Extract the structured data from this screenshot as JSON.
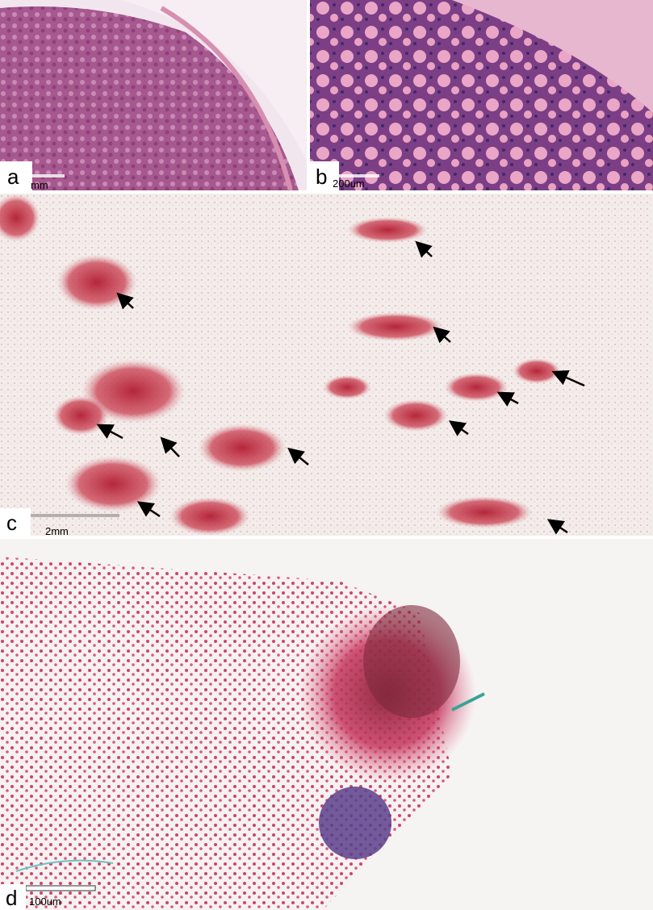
{
  "panels": [
    {
      "label": "a",
      "scale_text": "mm"
    },
    {
      "label": "b",
      "scale_text": "200um"
    },
    {
      "label": "c",
      "scale_text": "2mm"
    },
    {
      "label": "d",
      "scale_text": "100um"
    }
  ]
}
